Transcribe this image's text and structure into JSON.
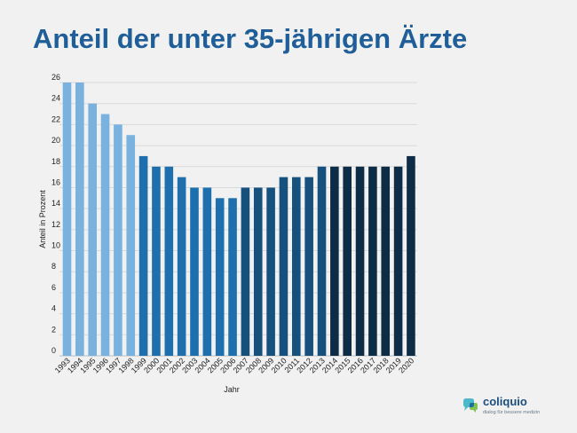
{
  "header": {
    "title": "Anteil der unter 35-jährigen Ärzte"
  },
  "chart_data": {
    "type": "bar",
    "title": "Anteil der unter 35-jährigen Ärzte",
    "xlabel": "Jahr",
    "ylabel": "Anteil in Prozent",
    "ylim": [
      0,
      26
    ],
    "yticks": [
      0,
      2,
      4,
      6,
      8,
      10,
      12,
      14,
      16,
      18,
      20,
      22,
      24,
      26
    ],
    "grid": true,
    "categories": [
      "1993",
      "1994",
      "1995",
      "1996",
      "1997",
      "1998",
      "1999",
      "2000",
      "2001",
      "2002",
      "2003",
      "2004",
      "2005",
      "2006",
      "2007",
      "2008",
      "2009",
      "2010",
      "2011",
      "2012",
      "2013",
      "2014",
      "2015",
      "2016",
      "2017",
      "2018",
      "2019",
      "2020"
    ],
    "values": [
      26,
      26,
      24,
      23,
      22,
      21,
      19,
      18,
      18,
      17,
      16,
      16,
      15,
      15,
      16,
      16,
      16,
      17,
      17,
      17,
      18,
      18,
      18,
      18,
      18,
      18,
      18,
      19
    ],
    "bar_colors": [
      "#79b1df",
      "#79b1df",
      "#79b1df",
      "#79b1df",
      "#79b1df",
      "#79b1df",
      "#1e6fae",
      "#1e6fae",
      "#1e6fae",
      "#1e6fae",
      "#1e6fae",
      "#1e6fae",
      "#1e6fae",
      "#1e6fae",
      "#16517e",
      "#16517e",
      "#16517e",
      "#16517e",
      "#16517e",
      "#16517e",
      "#16517e",
      "#0d2d47",
      "#0d2d47",
      "#0d2d47",
      "#0d2d47",
      "#0d2d47",
      "#0d2d47",
      "#0d2d47"
    ]
  },
  "branding": {
    "name": "coliquio",
    "tagline": "dialog für bessere medizin",
    "colors": {
      "primary": "#1a4f80",
      "accent": "#4db8c9",
      "green": "#7cc04a"
    }
  }
}
